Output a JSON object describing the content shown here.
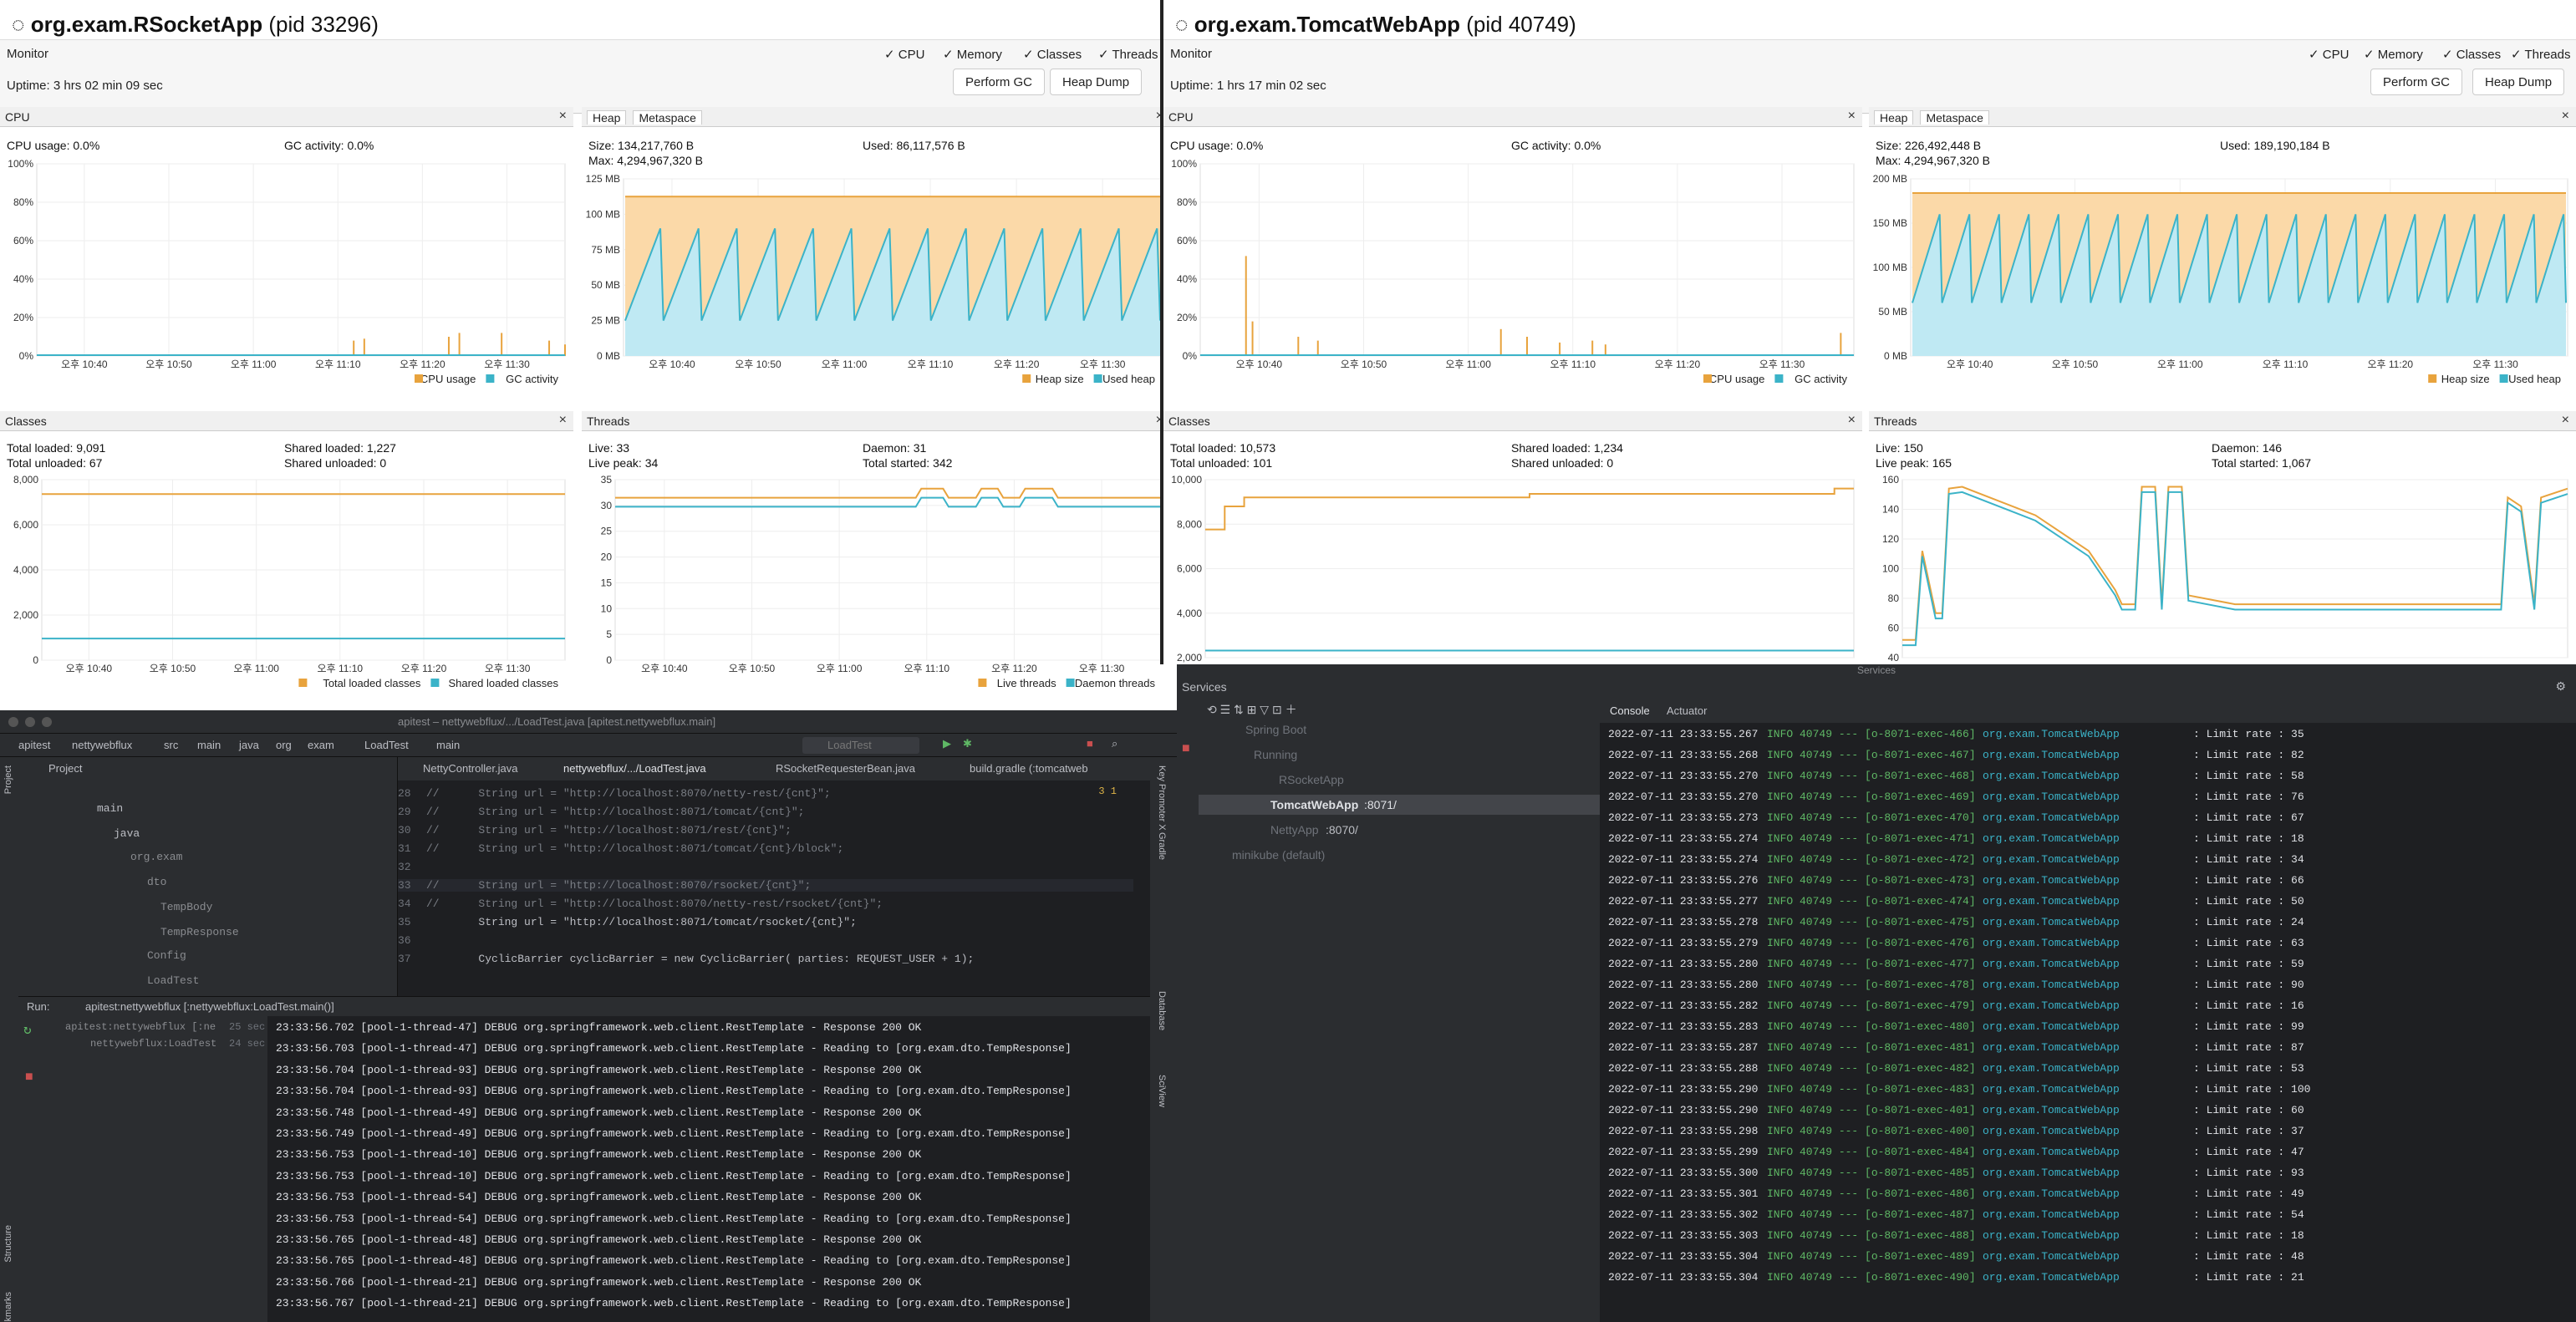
{
  "left": {
    "app": "org.exam.RSocketApp",
    "pid": "(pid 33296)",
    "monitor": "Monitor",
    "uptime": "Uptime: 3 hrs 02 min 09 sec",
    "checks": [
      "✓ CPU",
      "✓ Memory",
      "✓ Classes",
      "✓ Threads"
    ],
    "perform_gc": "Perform GC",
    "heap_dump": "Heap Dump",
    "cpu": {
      "title": "CPU",
      "usage": "CPU usage: 0.0%",
      "gc": "GC activity: 0.0%",
      "yticks": [
        "100%",
        "80%",
        "60%",
        "40%",
        "20%",
        "0%"
      ],
      "xticks": [
        "오후 10:40",
        "오후 10:50",
        "오후 11:00",
        "오후 11:10",
        "오후 11:20",
        "오후 11:30"
      ],
      "legend": [
        "CPU usage",
        "GC activity"
      ]
    },
    "heap": {
      "tab1": "Heap",
      "tab2": "Metaspace",
      "size": "Size: 134,217,760 B",
      "max": "Max: 4,294,967,320 B",
      "used": "Used: 86,117,576 B",
      "yticks": [
        "125 MB",
        "100 MB",
        "75 MB",
        "50 MB",
        "25 MB",
        "0 MB"
      ],
      "xticks": [
        "오후 10:40",
        "오후 10:50",
        "오후 11:00",
        "오후 11:10",
        "오후 11:20",
        "오후 11:30"
      ],
      "legend": [
        "Heap size",
        "Used heap"
      ]
    },
    "classes": {
      "title": "Classes",
      "total": "Total loaded: 9,091",
      "unloaded": "Total unloaded: 67",
      "shared": "Shared loaded: 1,227",
      "sunloaded": "Shared unloaded: 0",
      "yticks": [
        "8,000",
        "6,000",
        "4,000",
        "2,000",
        "0"
      ],
      "xticks": [
        "오후 10:40",
        "오후 10:50",
        "오후 11:00",
        "오후 11:10",
        "오후 11:20",
        "오후 11:30"
      ],
      "legend": [
        "Total loaded classes",
        "Shared loaded classes"
      ]
    },
    "threads": {
      "title": "Threads",
      "live": "Live: 33",
      "peak": "Live peak: 34",
      "daemon": "Daemon: 31",
      "started": "Total started: 342",
      "yticks": [
        "35",
        "30",
        "25",
        "20",
        "15",
        "10",
        "5",
        "0"
      ],
      "xticks": [
        "오후 10:40",
        "오후 10:50",
        "오후 11:00",
        "오후 11:10",
        "오후 11:20",
        "오후 11:30"
      ],
      "legend": [
        "Live threads",
        "Daemon threads"
      ]
    }
  },
  "right": {
    "app": "org.exam.TomcatWebApp",
    "pid": "(pid 40749)",
    "monitor": "Monitor",
    "uptime": "Uptime: 1 hrs 17 min 02 sec",
    "checks": [
      "✓ CPU",
      "✓ Memory",
      "✓ Classes",
      "✓ Threads"
    ],
    "perform_gc": "Perform GC",
    "heap_dump": "Heap Dump",
    "cpu": {
      "title": "CPU",
      "usage": "CPU usage: 0.0%",
      "gc": "GC activity: 0.0%",
      "yticks": [
        "100%",
        "80%",
        "60%",
        "40%",
        "20%",
        "0%"
      ],
      "xticks": [
        "오후 10:40",
        "오후 10:50",
        "오후 11:00",
        "오후 11:10",
        "오후 11:20",
        "오후 11:30"
      ],
      "legend": [
        "CPU usage",
        "GC activity"
      ]
    },
    "heap": {
      "tab1": "Heap",
      "tab2": "Metaspace",
      "size": "Size: 226,492,448 B",
      "max": "Max: 4,294,967,320 B",
      "used": "Used: 189,190,184 B",
      "yticks": [
        "200 MB",
        "150 MB",
        "100 MB",
        "50 MB",
        "0 MB"
      ],
      "xticks": [
        "오후 10:40",
        "오후 10:50",
        "오후 11:00",
        "오후 11:10",
        "오후 11:20",
        "오후 11:30"
      ],
      "legend": [
        "Heap size",
        "Used heap"
      ]
    },
    "classes": {
      "title": "Classes",
      "total": "Total loaded: 10,573",
      "unloaded": "Total unloaded: 101",
      "shared": "Shared loaded: 1,234",
      "sunloaded": "Shared unloaded: 0",
      "yticks": [
        "10,000",
        "8,000",
        "6,000",
        "4,000",
        "2,000"
      ]
    },
    "threads": {
      "title": "Threads",
      "live": "Live: 150",
      "peak": "Live peak: 165",
      "daemon": "Daemon: 146",
      "started": "Total started: 1,067",
      "yticks": [
        "160",
        "140",
        "120",
        "100",
        "80",
        "60",
        "40"
      ]
    }
  },
  "ide": {
    "title": "apitest – nettywebflux/.../LoadTest.java [apitest.nettywebflux.main]",
    "breadcrumb": [
      "apitest",
      "nettywebflux",
      "src",
      "main",
      "java",
      "org",
      "exam",
      "LoadTest",
      "main"
    ],
    "run_config": "LoadTest",
    "project_label": "Project",
    "tabs": [
      "NettyController.java",
      "nettywebflux/.../LoadTest.java",
      "RSocketRequesterBean.java",
      "build.gradle (:tomcatweb"
    ],
    "tree": [
      "main",
      "java",
      "org.exam",
      "dto",
      "TempBody",
      "TempResponse",
      "Config",
      "LoadTest"
    ],
    "code_lines": [
      {
        "n": "28",
        "t": "//      String url = \"http://localhost:8070/netty-rest/{cnt}\";"
      },
      {
        "n": "29",
        "t": "//      String url = \"http://localhost:8071/tomcat/{cnt}\";"
      },
      {
        "n": "30",
        "t": "//      String url = \"http://localhost:8071/rest/{cnt}\";"
      },
      {
        "n": "31",
        "t": "//      String url = \"http://localhost:8071/tomcat/{cnt}/block\";"
      },
      {
        "n": "32",
        "t": ""
      },
      {
        "n": "33",
        "t": "//      String url = \"http://localhost:8070/rsocket/{cnt}\";"
      },
      {
        "n": "34",
        "t": "//      String url = \"http://localhost:8070/netty-rest/rsocket/{cnt}\";"
      },
      {
        "n": "35",
        "t": "        String url = \"http://localhost:8071/tomcat/rsocket/{cnt}\";"
      },
      {
        "n": "36",
        "t": ""
      },
      {
        "n": "37",
        "t": "        CyclicBarrier cyclicBarrier = new CyclicBarrier( parties: REQUEST_USER + 1);"
      }
    ],
    "run_label": "Run:",
    "run_tab": "apitest:nettywebflux [:nettywebflux:LoadTest.main()]",
    "run_tree": [
      "apitest:nettywebflux [:ne",
      "nettywebflux:LoadTest"
    ],
    "run_times": [
      "25 sec",
      "24 sec"
    ],
    "warn": "3  1",
    "side_labels": [
      "Project",
      "Structure",
      "Bookmarks",
      "Gradle",
      "Key Promoter X",
      "Database",
      "SciView"
    ],
    "log": [
      "23:33:56.702 [pool-1-thread-47] DEBUG org.springframework.web.client.RestTemplate - Response 200 OK",
      "23:33:56.703 [pool-1-thread-47] DEBUG org.springframework.web.client.RestTemplate - Reading to [org.exam.dto.TempResponse]",
      "23:33:56.704 [pool-1-thread-93] DEBUG org.springframework.web.client.RestTemplate - Response 200 OK",
      "23:33:56.704 [pool-1-thread-93] DEBUG org.springframework.web.client.RestTemplate - Reading to [org.exam.dto.TempResponse]",
      "23:33:56.748 [pool-1-thread-49] DEBUG org.springframework.web.client.RestTemplate - Response 200 OK",
      "23:33:56.749 [pool-1-thread-49] DEBUG org.springframework.web.client.RestTemplate - Reading to [org.exam.dto.TempResponse]",
      "23:33:56.753 [pool-1-thread-10] DEBUG org.springframework.web.client.RestTemplate - Response 200 OK",
      "23:33:56.753 [pool-1-thread-10] DEBUG org.springframework.web.client.RestTemplate - Reading to [org.exam.dto.TempResponse]",
      "23:33:56.753 [pool-1-thread-54] DEBUG org.springframework.web.client.RestTemplate - Response 200 OK",
      "23:33:56.753 [pool-1-thread-54] DEBUG org.springframework.web.client.RestTemplate - Reading to [org.exam.dto.TempResponse]",
      "23:33:56.765 [pool-1-thread-48] DEBUG org.springframework.web.client.RestTemplate - Response 200 OK",
      "23:33:56.765 [pool-1-thread-48] DEBUG org.springframework.web.client.RestTemplate - Reading to [org.exam.dto.TempResponse]",
      "23:33:56.766 [pool-1-thread-21] DEBUG org.springframework.web.client.RestTemplate - Response 200 OK",
      "23:33:56.767 [pool-1-thread-21] DEBUG org.springframework.web.client.RestTemplate - Reading to [org.exam.dto.TempResponse]"
    ]
  },
  "services": {
    "title": "Services",
    "header": "Services",
    "tab_console": "Console",
    "tab_actuator": "Actuator",
    "tree": [
      {
        "label": "Spring Boot",
        "port": ""
      },
      {
        "label": "Running",
        "port": ""
      },
      {
        "label": "RSocketApp",
        "port": ""
      },
      {
        "label": "TomcatWebApp",
        "port": ":8071/"
      },
      {
        "label": "NettyApp",
        "port": ":8070/"
      },
      {
        "label": "minikube (default)",
        "port": ""
      }
    ],
    "log": [
      [
        "2022-07-11 23:33:55.267",
        "INFO 40749 --- [o-8071-exec-466]",
        "org.exam.TomcatWebApp",
        ": Limit rate : 35"
      ],
      [
        "2022-07-11 23:33:55.268",
        "INFO 40749 --- [o-8071-exec-467]",
        "org.exam.TomcatWebApp",
        ": Limit rate : 82"
      ],
      [
        "2022-07-11 23:33:55.270",
        "INFO 40749 --- [o-8071-exec-468]",
        "org.exam.TomcatWebApp",
        ": Limit rate : 58"
      ],
      [
        "2022-07-11 23:33:55.270",
        "INFO 40749 --- [o-8071-exec-469]",
        "org.exam.TomcatWebApp",
        ": Limit rate : 76"
      ],
      [
        "2022-07-11 23:33:55.273",
        "INFO 40749 --- [o-8071-exec-470]",
        "org.exam.TomcatWebApp",
        ": Limit rate : 67"
      ],
      [
        "2022-07-11 23:33:55.274",
        "INFO 40749 --- [o-8071-exec-471]",
        "org.exam.TomcatWebApp",
        ": Limit rate : 18"
      ],
      [
        "2022-07-11 23:33:55.274",
        "INFO 40749 --- [o-8071-exec-472]",
        "org.exam.TomcatWebApp",
        ": Limit rate : 34"
      ],
      [
        "2022-07-11 23:33:55.276",
        "INFO 40749 --- [o-8071-exec-473]",
        "org.exam.TomcatWebApp",
        ": Limit rate : 66"
      ],
      [
        "2022-07-11 23:33:55.277",
        "INFO 40749 --- [o-8071-exec-474]",
        "org.exam.TomcatWebApp",
        ": Limit rate : 50"
      ],
      [
        "2022-07-11 23:33:55.278",
        "INFO 40749 --- [o-8071-exec-475]",
        "org.exam.TomcatWebApp",
        ": Limit rate : 24"
      ],
      [
        "2022-07-11 23:33:55.279",
        "INFO 40749 --- [o-8071-exec-476]",
        "org.exam.TomcatWebApp",
        ": Limit rate : 63"
      ],
      [
        "2022-07-11 23:33:55.280",
        "INFO 40749 --- [o-8071-exec-477]",
        "org.exam.TomcatWebApp",
        ": Limit rate : 59"
      ],
      [
        "2022-07-11 23:33:55.280",
        "INFO 40749 --- [o-8071-exec-478]",
        "org.exam.TomcatWebApp",
        ": Limit rate : 90"
      ],
      [
        "2022-07-11 23:33:55.282",
        "INFO 40749 --- [o-8071-exec-479]",
        "org.exam.TomcatWebApp",
        ": Limit rate : 16"
      ],
      [
        "2022-07-11 23:33:55.283",
        "INFO 40749 --- [o-8071-exec-480]",
        "org.exam.TomcatWebApp",
        ": Limit rate : 99"
      ],
      [
        "2022-07-11 23:33:55.287",
        "INFO 40749 --- [o-8071-exec-481]",
        "org.exam.TomcatWebApp",
        ": Limit rate : 87"
      ],
      [
        "2022-07-11 23:33:55.288",
        "INFO 40749 --- [o-8071-exec-482]",
        "org.exam.TomcatWebApp",
        ": Limit rate : 53"
      ],
      [
        "2022-07-11 23:33:55.290",
        "INFO 40749 --- [o-8071-exec-483]",
        "org.exam.TomcatWebApp",
        ": Limit rate : 100"
      ],
      [
        "2022-07-11 23:33:55.290",
        "INFO 40749 --- [o-8071-exec-401]",
        "org.exam.TomcatWebApp",
        ": Limit rate : 60"
      ],
      [
        "2022-07-11 23:33:55.298",
        "INFO 40749 --- [o-8071-exec-400]",
        "org.exam.TomcatWebApp",
        ": Limit rate : 37"
      ],
      [
        "2022-07-11 23:33:55.299",
        "INFO 40749 --- [o-8071-exec-484]",
        "org.exam.TomcatWebApp",
        ": Limit rate : 47"
      ],
      [
        "2022-07-11 23:33:55.300",
        "INFO 40749 --- [o-8071-exec-485]",
        "org.exam.TomcatWebApp",
        ": Limit rate : 93"
      ],
      [
        "2022-07-11 23:33:55.301",
        "INFO 40749 --- [o-8071-exec-486]",
        "org.exam.TomcatWebApp",
        ": Limit rate : 49"
      ],
      [
        "2022-07-11 23:33:55.302",
        "INFO 40749 --- [o-8071-exec-487]",
        "org.exam.TomcatWebApp",
        ": Limit rate : 54"
      ],
      [
        "2022-07-11 23:33:55.303",
        "INFO 40749 --- [o-8071-exec-488]",
        "org.exam.TomcatWebApp",
        ": Limit rate : 18"
      ],
      [
        "2022-07-11 23:33:55.304",
        "INFO 40749 --- [o-8071-exec-489]",
        "org.exam.TomcatWebApp",
        ": Limit rate : 48"
      ],
      [
        "2022-07-11 23:33:55.304",
        "INFO 40749 --- [o-8071-exec-490]",
        "org.exam.TomcatWebApp",
        ": Limit rate : 21"
      ]
    ]
  },
  "colors": {
    "orange": "#e8a33d",
    "orange_fill": "#fbd9a8",
    "blue": "#3bb3c8",
    "blue_fill": "#bfe9f3"
  }
}
